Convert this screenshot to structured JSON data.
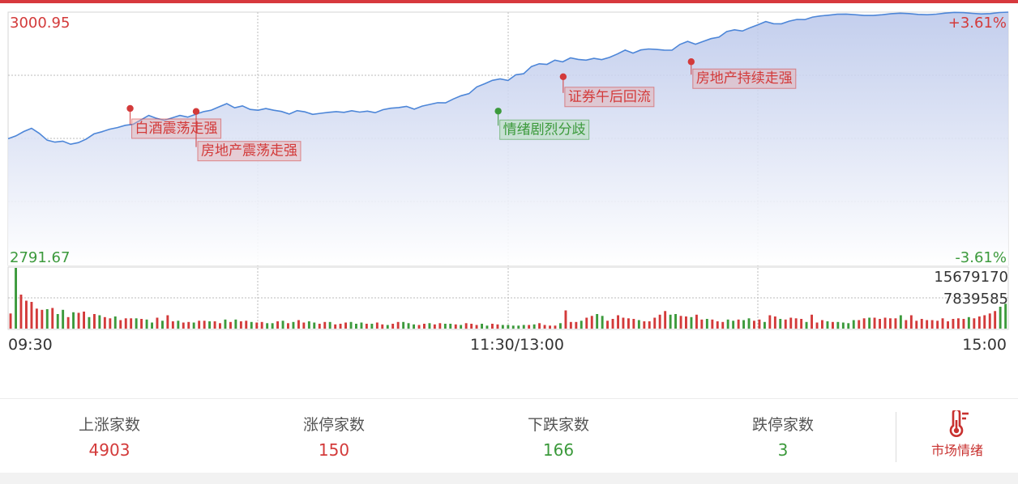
{
  "colors": {
    "up": "#d33a3a",
    "down": "#3c9a3c",
    "line": "#4d86d8",
    "accent": "#c8312f"
  },
  "chart_data": {
    "type": "line",
    "price_high": "3000.95",
    "price_low": "2791.67",
    "pct_high": "+3.61%",
    "pct_low": "-3.61%",
    "vol_max": "15679170",
    "vol_mid": "7839585",
    "x_ticks": [
      "09:30",
      "11:30/13:00",
      "15:00"
    ],
    "ylim": [
      2791.67,
      3000.95
    ],
    "base_price": 2896.31,
    "intraday_prices": [
      2896.4,
      2898.7,
      2902.3,
      2905.0,
      2900.8,
      2895.2,
      2893.6,
      2894.4,
      2891.8,
      2893.2,
      2896.1,
      2900.4,
      2902.1,
      2904.3,
      2905.6,
      2907.5,
      2908.3,
      2911.9,
      2915.6,
      2913.2,
      2911.6,
      2913.6,
      2915.6,
      2914.2,
      2916.5,
      2918.7,
      2920.0,
      2922.7,
      2925.4,
      2921.9,
      2923.5,
      2920.6,
      2919.9,
      2921.3,
      2919.9,
      2918.9,
      2916.8,
      2919.6,
      2918.6,
      2916.5,
      2917.4,
      2918.2,
      2918.8,
      2918.2,
      2919.5,
      2918.4,
      2919.2,
      2917.9,
      2920.4,
      2921.6,
      2922.1,
      2923.1,
      2920.8,
      2923.3,
      2924.7,
      2926.1,
      2926.0,
      2929.2,
      2931.9,
      2933.6,
      2939.2,
      2941.8,
      2944.6,
      2945.8,
      2944.5,
      2949.2,
      2950.1,
      2956.0,
      2958.3,
      2957.8,
      2961.3,
      2959.9,
      2963.2,
      2961.9,
      2961.3,
      2962.8,
      2961.7,
      2963.6,
      2966.4,
      2969.6,
      2967.1,
      2969.7,
      2970.5,
      2970.1,
      2969.6,
      2969.5,
      2974.3,
      2976.8,
      2974.5,
      2976.8,
      2979.1,
      2980.3,
      2984.9,
      2986.4,
      2985.4,
      2988.1,
      2990.5,
      2993.2,
      2991.4,
      2991.3,
      2993.5,
      2994.9,
      2994.8,
      2996.9,
      2997.8,
      2998.4
    ],
    "annotations": [
      {
        "text": "白酒震荡走强",
        "kind": "up",
        "x": 0.122,
        "price": 2921.4
      },
      {
        "text": "房地产震荡走强",
        "kind": "up",
        "x": 0.188,
        "price": 2918.9
      },
      {
        "text": "情绪剧烈分歧",
        "kind": "down",
        "x": 0.49,
        "price": 2919.2
      },
      {
        "text": "证券午后回流",
        "kind": "up",
        "x": 0.555,
        "price": 2947.6
      },
      {
        "text": "房地产持续走强",
        "kind": "up",
        "x": 0.683,
        "price": 2960.0
      }
    ],
    "volumes": [
      0.25,
      1.0,
      0.56,
      0.46,
      0.44,
      0.33,
      0.31,
      0.32,
      0.34,
      0.24,
      0.31,
      0.19,
      0.27,
      0.26,
      0.28,
      0.19,
      0.24,
      0.22,
      0.19,
      0.17,
      0.2,
      0.14,
      0.17,
      0.17,
      0.17,
      0.16,
      0.15,
      0.1,
      0.18,
      0.13,
      0.22,
      0.12,
      0.13,
      0.1,
      0.11,
      0.1,
      0.13,
      0.13,
      0.12,
      0.12,
      0.09,
      0.15,
      0.11,
      0.15,
      0.12,
      0.13,
      0.11,
      0.1,
      0.11,
      0.09,
      0.09,
      0.12,
      0.13,
      0.09,
      0.11,
      0.14,
      0.1,
      0.12,
      0.1,
      0.08,
      0.11,
      0.11,
      0.07,
      0.08,
      0.1,
      0.11,
      0.08,
      0.1,
      0.08,
      0.08,
      0.1,
      0.07,
      0.06,
      0.08,
      0.11,
      0.11,
      0.09,
      0.07,
      0.06,
      0.08,
      0.09,
      0.07,
      0.09,
      0.08,
      0.08,
      0.07,
      0.06,
      0.09,
      0.08,
      0.06,
      0.08,
      0.05,
      0.08,
      0.07,
      0.06,
      0.06,
      0.05,
      0.05,
      0.06,
      0.06,
      0.07,
      0.09,
      0.06,
      0.05,
      0.05,
      0.09,
      0.3,
      0.11,
      0.11,
      0.13,
      0.18,
      0.21,
      0.24,
      0.21,
      0.13,
      0.16,
      0.22,
      0.18,
      0.17,
      0.16,
      0.14,
      0.12,
      0.12,
      0.18,
      0.23,
      0.29,
      0.23,
      0.24,
      0.21,
      0.2,
      0.19,
      0.23,
      0.15,
      0.16,
      0.15,
      0.12,
      0.11,
      0.15,
      0.13,
      0.15,
      0.14,
      0.17,
      0.13,
      0.15,
      0.11,
      0.22,
      0.2,
      0.16,
      0.15,
      0.18,
      0.17,
      0.16,
      0.11,
      0.23,
      0.1,
      0.14,
      0.12,
      0.11,
      0.11,
      0.1,
      0.09,
      0.14,
      0.14,
      0.17,
      0.18,
      0.18,
      0.16,
      0.18,
      0.17,
      0.17,
      0.22,
      0.14,
      0.22,
      0.13,
      0.16,
      0.14,
      0.14,
      0.13,
      0.17,
      0.12,
      0.16,
      0.17,
      0.16,
      0.19,
      0.17,
      0.2,
      0.22,
      0.25,
      0.29,
      0.36,
      0.41
    ],
    "volume_up": [
      1,
      0,
      1,
      1,
      1,
      1,
      1,
      0,
      1,
      0,
      0,
      1,
      0,
      1,
      1,
      0,
      1,
      0,
      1,
      1,
      0,
      1,
      1,
      1,
      0,
      1,
      0,
      0,
      1,
      0,
      1,
      1,
      0,
      1,
      1,
      0,
      1,
      1,
      0,
      1,
      1,
      0,
      1,
      0,
      1,
      1,
      0,
      1,
      1,
      0,
      0,
      1,
      0,
      1,
      0,
      1,
      1,
      0,
      0,
      1,
      1,
      0,
      1,
      1,
      1,
      0,
      0,
      0,
      1,
      0,
      1,
      1,
      0,
      1,
      1,
      0,
      0,
      0,
      1,
      1,
      0,
      1,
      1,
      0,
      0,
      1,
      0,
      1,
      1,
      1,
      0,
      0,
      1,
      1,
      0,
      0,
      0,
      0,
      0,
      1,
      0,
      1,
      1,
      1,
      1,
      0,
      1,
      1,
      1,
      0,
      1,
      1,
      0,
      0,
      1,
      1,
      1,
      1,
      1,
      1,
      0,
      1,
      1,
      1,
      1,
      1,
      0,
      0,
      1,
      1,
      0,
      1,
      1,
      0,
      1,
      1,
      1,
      0,
      0,
      1,
      0,
      0,
      1,
      1,
      0,
      1,
      1,
      0,
      1,
      1,
      1,
      1,
      0,
      1,
      1,
      1,
      0,
      1,
      0,
      0,
      0,
      0,
      1,
      1,
      0,
      1,
      1,
      1,
      1,
      1,
      0,
      1,
      1,
      1,
      1,
      1,
      1,
      1,
      1,
      1,
      1,
      1,
      1,
      0,
      1,
      1,
      1,
      1,
      1
    ]
  },
  "stats": [
    {
      "label": "上涨家数",
      "value": "4903",
      "kind": "up"
    },
    {
      "label": "涨停家数",
      "value": "150",
      "kind": "up"
    },
    {
      "label": "下跌家数",
      "value": "166",
      "kind": "down"
    },
    {
      "label": "跌停家数",
      "value": "3",
      "kind": "down"
    }
  ],
  "market_mood": {
    "label": "市场情绪",
    "icon": "thermometer-icon"
  }
}
